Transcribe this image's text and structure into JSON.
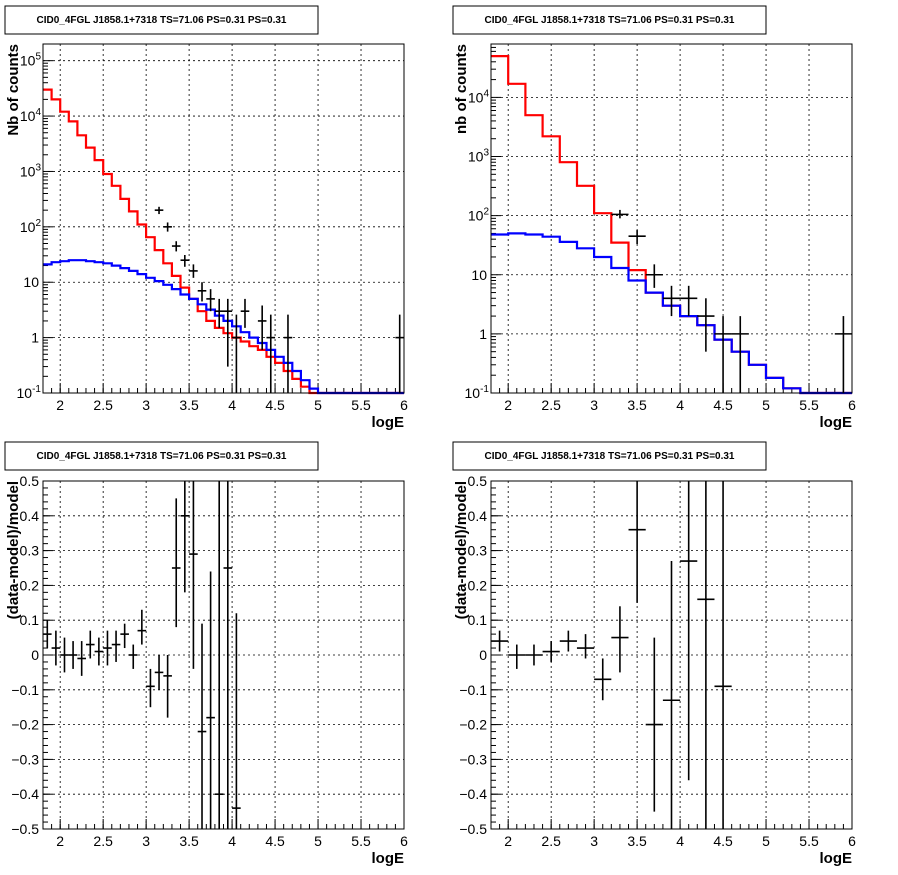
{
  "chart_data": [
    {
      "type": "step",
      "title": "CID0_4FGL J1858.1+7318 TS=71.06 PS=0.31 PS=0.31",
      "xlabel": "logE",
      "ylabel": "Nb of counts",
      "xlim": [
        1.8,
        6.0
      ],
      "ylim": [
        0.1,
        200000
      ],
      "yscale": "log",
      "grid": true,
      "x_ticks": [
        "2",
        "2.5",
        "3",
        "3.5",
        "4",
        "4.5",
        "5",
        "5.5",
        "6"
      ],
      "y_ticks": [
        "10^-1",
        "1",
        "10",
        "10^2",
        "10^3",
        "10^4",
        "10^5"
      ],
      "bin_edges": [
        1.8,
        1.9,
        2.0,
        2.1,
        2.2,
        2.3,
        2.4,
        2.5,
        2.6,
        2.7,
        2.8,
        2.9,
        3.0,
        3.1,
        3.2,
        3.3,
        3.4,
        3.5,
        3.6,
        3.7,
        3.8,
        3.9,
        4.0,
        4.1,
        4.2,
        4.3,
        4.4,
        4.5,
        4.6,
        4.7,
        4.8,
        4.9,
        5.0,
        5.1,
        5.2,
        5.3,
        5.4,
        5.5,
        5.6,
        5.7,
        5.8,
        5.9,
        6.0
      ],
      "series": [
        {
          "name": "",
          "color": "#ff0000",
          "style": "step",
          "values": [
            30000,
            20000,
            12000,
            8000,
            4500,
            2700,
            1600,
            900,
            550,
            320,
            190,
            110,
            65,
            38,
            22,
            13,
            8,
            5,
            3,
            2,
            1.5,
            1.2,
            1.0,
            0.85,
            0.7,
            0.6,
            0.45,
            0.35,
            0.25,
            0.18,
            0.13,
            0.1,
            0.1,
            0.1,
            0.1,
            0.1,
            0.1,
            0.1,
            0.1,
            0.1,
            0.1,
            0.1
          ]
        },
        {
          "name": "",
          "color": "#0000ff",
          "style": "step",
          "values": [
            21,
            23,
            24,
            25,
            25,
            24,
            23,
            22,
            20,
            18,
            16,
            14,
            12,
            10.5,
            9,
            7.5,
            6,
            5,
            4,
            3.2,
            2.5,
            2.0,
            1.6,
            1.25,
            1.0,
            0.8,
            0.6,
            0.45,
            0.35,
            0.25,
            0.17,
            0.12,
            0.1,
            0.1,
            0.1,
            0.1,
            0.1,
            0.1,
            0.1,
            0.1,
            0.1,
            0.1
          ]
        },
        {
          "name": "",
          "color": "#000000",
          "style": "errorbar",
          "points": [
            [
              3.15,
              200,
              230,
              170
            ],
            [
              3.25,
              100,
              120,
              82
            ],
            [
              3.35,
              45,
              55,
              36
            ],
            [
              3.45,
              25,
              31,
              19
            ],
            [
              3.55,
              16,
              21,
              12
            ],
            [
              3.65,
              7,
              10,
              4.5
            ],
            [
              3.75,
              5,
              7.5,
              3
            ],
            [
              3.85,
              3,
              5,
              1.5
            ],
            [
              3.95,
              3,
              5,
              0.3
            ],
            [
              4.05,
              1,
              2.6,
              0.1
            ],
            [
              4.15,
              3,
              5,
              1.5
            ],
            [
              4.35,
              2,
              3.8,
              0.6
            ],
            [
              4.45,
              1,
              2.6,
              0.1
            ],
            [
              4.65,
              1,
              2.6,
              0.1
            ],
            [
              5.95,
              1,
              2.6,
              0.1
            ]
          ]
        }
      ]
    },
    {
      "type": "step",
      "title": "CID0_4FGL J1858.1+7318 TS=71.06 PS=0.31 PS=0.31",
      "xlabel": "logE",
      "ylabel": "nb of counts",
      "xlim": [
        1.8,
        6.0
      ],
      "ylim": [
        0.1,
        80000
      ],
      "yscale": "log",
      "grid": true,
      "x_ticks": [
        "2",
        "2.5",
        "3",
        "3.5",
        "4",
        "4.5",
        "5",
        "5.5",
        "6"
      ],
      "y_ticks": [
        "10^-1",
        "1",
        "10",
        "10^2",
        "10^3",
        "10^4"
      ],
      "bin_edges": [
        1.8,
        2.0,
        2.2,
        2.4,
        2.6,
        2.8,
        3.0,
        3.2,
        3.4,
        3.6,
        3.8,
        4.0,
        4.2,
        4.4,
        4.6,
        4.8,
        5.0,
        5.2,
        5.4,
        5.6,
        5.8,
        6.0
      ],
      "series": [
        {
          "name": "",
          "color": "#ff0000",
          "style": "step",
          "values": [
            50000,
            17000,
            5000,
            2200,
            800,
            320,
            110,
            35,
            12,
            5,
            3,
            2,
            1.4,
            0.8,
            0.5,
            0.3,
            0.18,
            0.12,
            0.1,
            0.1,
            0.1
          ]
        },
        {
          "name": "",
          "color": "#0000ff",
          "style": "step",
          "values": [
            48,
            50,
            48,
            44,
            36,
            28,
            20,
            13,
            8,
            5,
            3,
            2,
            1.4,
            0.8,
            0.5,
            0.3,
            0.18,
            0.12,
            0.1,
            0.1,
            0.1
          ]
        },
        {
          "name": "",
          "color": "#000000",
          "style": "errorbar",
          "points": [
            [
              3.3,
              105,
              125,
              90
            ],
            [
              3.5,
              45,
              57,
              33
            ],
            [
              3.7,
              10,
              15,
              6
            ],
            [
              3.9,
              4,
              6.5,
              2
            ],
            [
              4.1,
              4,
              6.5,
              2
            ],
            [
              4.3,
              2,
              4,
              0.5
            ],
            [
              4.5,
              1,
              2,
              0.1
            ],
            [
              4.7,
              1,
              2,
              0.1
            ],
            [
              5.9,
              1,
              2,
              0.1
            ]
          ]
        }
      ]
    },
    {
      "type": "errorbar",
      "title": "CID0_4FGL J1858.1+7318 TS=71.06 PS=0.31 PS=0.31",
      "xlabel": "logE",
      "ylabel": "(data-model)/model",
      "xlim": [
        1.8,
        6.0
      ],
      "ylim": [
        -0.5,
        0.5
      ],
      "grid": true,
      "x_ticks": [
        "2",
        "2.5",
        "3",
        "3.5",
        "4",
        "4.5",
        "5",
        "5.5",
        "6"
      ],
      "y_ticks": [
        "-0.5",
        "-0.4",
        "-0.3",
        "-0.2",
        "-0.1",
        "0",
        "0.1",
        "0.2",
        "0.3",
        "0.4",
        "0.5"
      ],
      "bin_width": 0.1,
      "points": [
        [
          1.85,
          0.06,
          0.1,
          0.02
        ],
        [
          1.95,
          0.02,
          0.07,
          -0.03
        ],
        [
          2.05,
          0.0,
          0.05,
          -0.05
        ],
        [
          2.15,
          0.0,
          0.04,
          -0.04
        ],
        [
          2.25,
          -0.01,
          0.04,
          -0.06
        ],
        [
          2.35,
          0.03,
          0.07,
          -0.01
        ],
        [
          2.45,
          0.01,
          0.05,
          -0.03
        ],
        [
          2.55,
          0.02,
          0.07,
          -0.03
        ],
        [
          2.65,
          0.03,
          0.07,
          -0.02
        ],
        [
          2.75,
          0.06,
          0.09,
          0.02
        ],
        [
          2.85,
          0.0,
          0.03,
          -0.04
        ],
        [
          2.95,
          0.07,
          0.13,
          0.03
        ],
        [
          3.05,
          -0.09,
          -0.04,
          -0.15
        ],
        [
          3.15,
          -0.05,
          0.0,
          -0.1
        ],
        [
          3.25,
          -0.06,
          0.0,
          -0.18
        ],
        [
          3.35,
          0.25,
          0.45,
          0.08
        ],
        [
          3.45,
          0.4,
          0.5,
          0.18
        ],
        [
          3.55,
          0.29,
          0.5,
          -0.04
        ],
        [
          3.65,
          -0.22,
          0.09,
          -0.5
        ],
        [
          3.75,
          -0.18,
          0.24,
          -0.5
        ],
        [
          3.85,
          -0.4,
          0.5,
          -0.5
        ],
        [
          3.95,
          0.25,
          0.5,
          -0.5
        ],
        [
          4.05,
          -0.44,
          0.12,
          -0.5
        ]
      ]
    },
    {
      "type": "errorbar",
      "title": "CID0_4FGL J1858.1+7318 TS=71.06 PS=0.31 PS=0.31",
      "xlabel": "logE",
      "ylabel": "(data-model)/model",
      "xlim": [
        1.8,
        6.0
      ],
      "ylim": [
        -0.5,
        0.5
      ],
      "grid": true,
      "x_ticks": [
        "2",
        "2.5",
        "3",
        "3.5",
        "4",
        "4.5",
        "5",
        "5.5",
        "6"
      ],
      "y_ticks": [
        "-0.5",
        "-0.4",
        "-0.3",
        "-0.2",
        "-0.1",
        "0",
        "0.1",
        "0.2",
        "0.3",
        "0.4",
        "0.5"
      ],
      "bin_width": 0.2,
      "points": [
        [
          1.9,
          0.04,
          0.07,
          0.01
        ],
        [
          2.1,
          0.0,
          0.03,
          -0.04
        ],
        [
          2.3,
          0.0,
          0.03,
          -0.03
        ],
        [
          2.5,
          0.01,
          0.04,
          -0.02
        ],
        [
          2.7,
          0.04,
          0.07,
          0.01
        ],
        [
          2.9,
          0.02,
          0.06,
          -0.01
        ],
        [
          3.1,
          -0.07,
          -0.01,
          -0.13
        ],
        [
          3.3,
          0.05,
          0.14,
          -0.05
        ],
        [
          3.5,
          0.36,
          0.5,
          0.15
        ],
        [
          3.7,
          -0.2,
          0.05,
          -0.45
        ],
        [
          3.9,
          -0.13,
          0.27,
          -0.5
        ],
        [
          4.1,
          0.27,
          0.5,
          -0.36
        ],
        [
          4.3,
          0.16,
          0.5,
          -0.5
        ],
        [
          4.5,
          -0.09,
          0.5,
          -0.5
        ]
      ]
    }
  ]
}
